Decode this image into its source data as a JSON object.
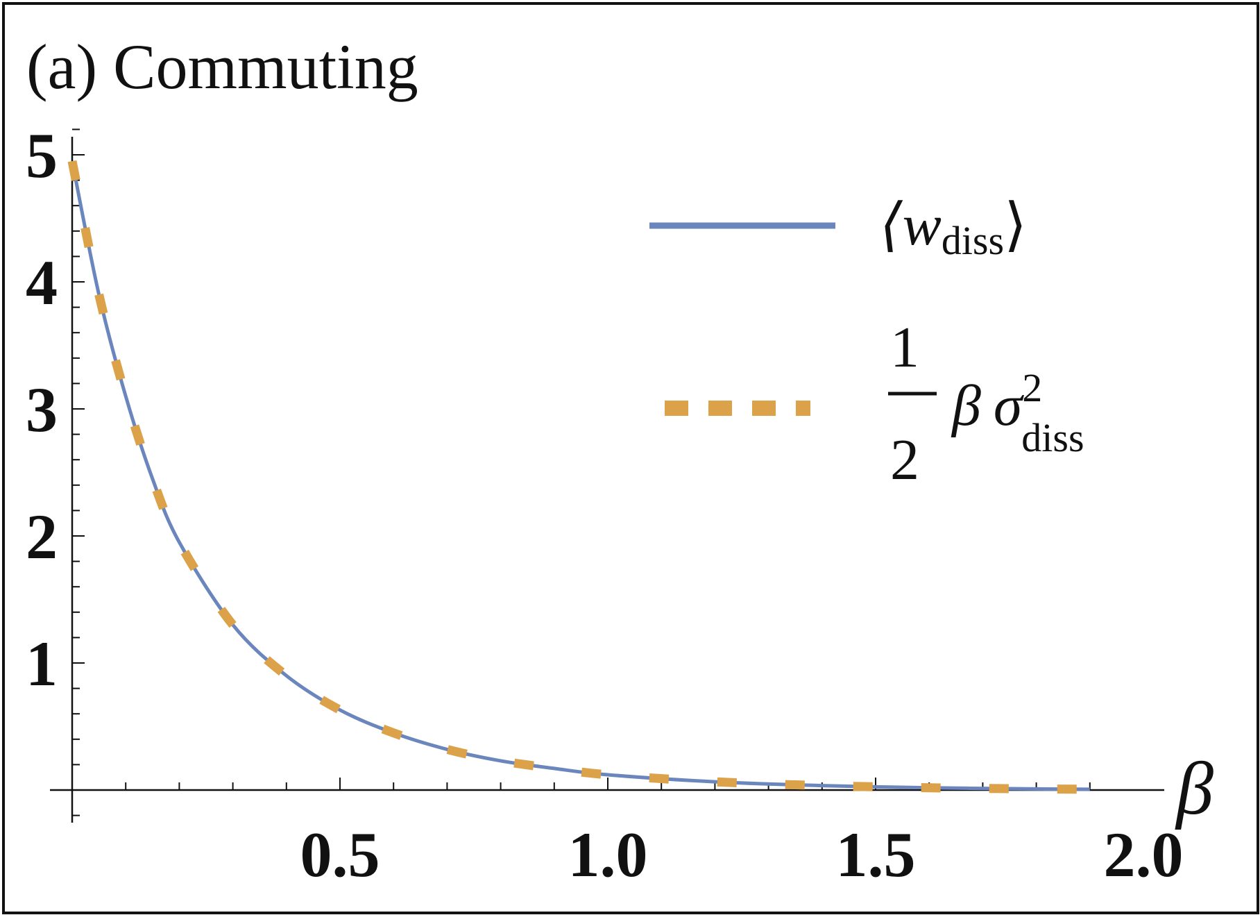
{
  "chart_data": {
    "type": "line",
    "panel_title": "(a) Commuting",
    "xlabel": "β",
    "ylabel": "",
    "xlim": [
      0.0,
      2.0
    ],
    "ylim": [
      0,
      5
    ],
    "x_major_ticks": [
      0.5,
      1.0,
      1.5,
      2.0
    ],
    "x_tick_labels": [
      "0.5",
      "1.0",
      "1.5",
      "2.0"
    ],
    "y_major_ticks": [
      1,
      2,
      3,
      4,
      5
    ],
    "y_tick_labels": [
      "1",
      "2",
      "3",
      "4",
      "5"
    ],
    "grid": false,
    "legend_position": "top-right",
    "x": [
      0.0,
      0.05,
      0.1,
      0.15,
      0.2,
      0.3,
      0.4,
      0.5,
      0.6,
      0.7,
      0.8,
      0.9,
      1.0,
      1.2,
      1.4,
      1.6,
      1.8,
      1.9
    ],
    "series": [
      {
        "name": "⟨w_diss⟩",
        "legend_main": "⟨w",
        "legend_sub": "diss",
        "legend_close": "⟩",
        "style": "solid",
        "color": "#6a86bd",
        "values": [
          4.95,
          3.9,
          3.1,
          2.45,
          1.95,
          1.3,
          0.9,
          0.63,
          0.45,
          0.32,
          0.23,
          0.17,
          0.12,
          0.065,
          0.035,
          0.018,
          0.009,
          0.006
        ]
      },
      {
        "name": "½ β σ²_diss",
        "legend_num": "1",
        "legend_den": "2",
        "legend_beta": "β",
        "legend_sigma": "σ",
        "legend_sup": "2",
        "legend_sub": "diss",
        "style": "dashed",
        "color": "#dba24a",
        "values": [
          4.95,
          3.9,
          3.1,
          2.45,
          1.95,
          1.3,
          0.9,
          0.63,
          0.45,
          0.32,
          0.23,
          0.17,
          0.12,
          0.065,
          0.035,
          0.018,
          0.009,
          0.006
        ]
      }
    ]
  }
}
